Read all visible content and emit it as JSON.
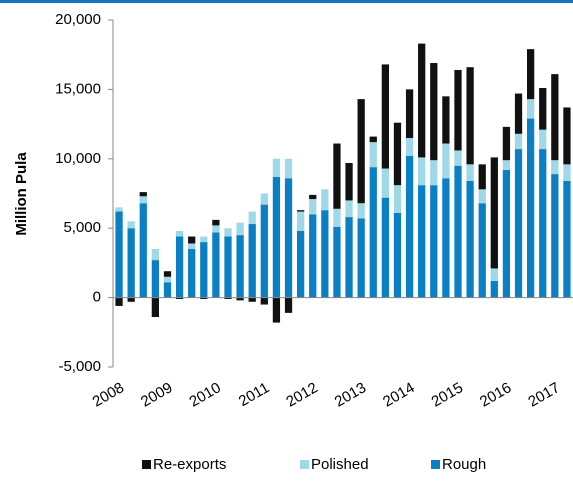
{
  "chart_data": {
    "type": "stacked-bar",
    "y_label": "Million Pula",
    "categories": [
      "2008",
      null,
      null,
      null,
      "2009",
      null,
      null,
      null,
      "2010",
      null,
      null,
      null,
      "2011",
      null,
      null,
      null,
      "2012",
      null,
      null,
      null,
      "2013",
      null,
      null,
      null,
      "2014",
      null,
      null,
      null,
      "2015",
      null,
      null,
      null,
      "2016",
      null,
      null,
      null,
      "2017",
      null
    ],
    "series": [
      {
        "name": "Rough",
        "color": "#0a7fc4",
        "values": [
          6200,
          5000,
          6800,
          2700,
          1100,
          4400,
          3500,
          4000,
          4700,
          4400,
          4500,
          5300,
          6700,
          8700,
          8600,
          4800,
          6000,
          6300,
          5100,
          5800,
          5700,
          9400,
          7200,
          6100,
          10200,
          8100,
          8100,
          8600,
          9500,
          8400,
          6800,
          1200,
          9200,
          10700,
          12900,
          10700,
          8900,
          8400
        ]
      },
      {
        "name": "Polished",
        "color": "#9fd8e6",
        "values": [
          300,
          500,
          500,
          800,
          400,
          400,
          400,
          400,
          500,
          600,
          900,
          900,
          800,
          1300,
          1400,
          1400,
          1100,
          1500,
          1300,
          1200,
          1100,
          1800,
          2100,
          2000,
          1300,
          2000,
          1800,
          2500,
          1100,
          1200,
          1000,
          900,
          700,
          1100,
          1400,
          1400,
          1000,
          1200
        ]
      },
      {
        "name": "Re-exports",
        "color": "#111111",
        "values": [
          -600,
          -300,
          300,
          -1400,
          400,
          -100,
          500,
          -100,
          400,
          -100,
          -200,
          -300,
          -500,
          -1800,
          -1100,
          100,
          300,
          0,
          4700,
          2700,
          7500,
          400,
          7500,
          4500,
          3500,
          8200,
          7000,
          3400,
          5800,
          7000,
          1800,
          8000,
          2400,
          2900,
          3600,
          3000,
          6200,
          4100
        ]
      }
    ],
    "legend_order": [
      "Re-exports",
      "Polished",
      "Rough"
    ],
    "ylim": [
      -5000,
      20000
    ],
    "yticks": [
      {
        "value": -5000,
        "label": "-5,000"
      },
      0,
      {
        "value": 5000,
        "label": "5,000"
      },
      {
        "value": 10000,
        "label": "10,000"
      },
      {
        "value": 15000,
        "label": "15,000"
      },
      {
        "value": 20000,
        "label": "20,000"
      }
    ],
    "grid": false,
    "legend": "bottom"
  }
}
